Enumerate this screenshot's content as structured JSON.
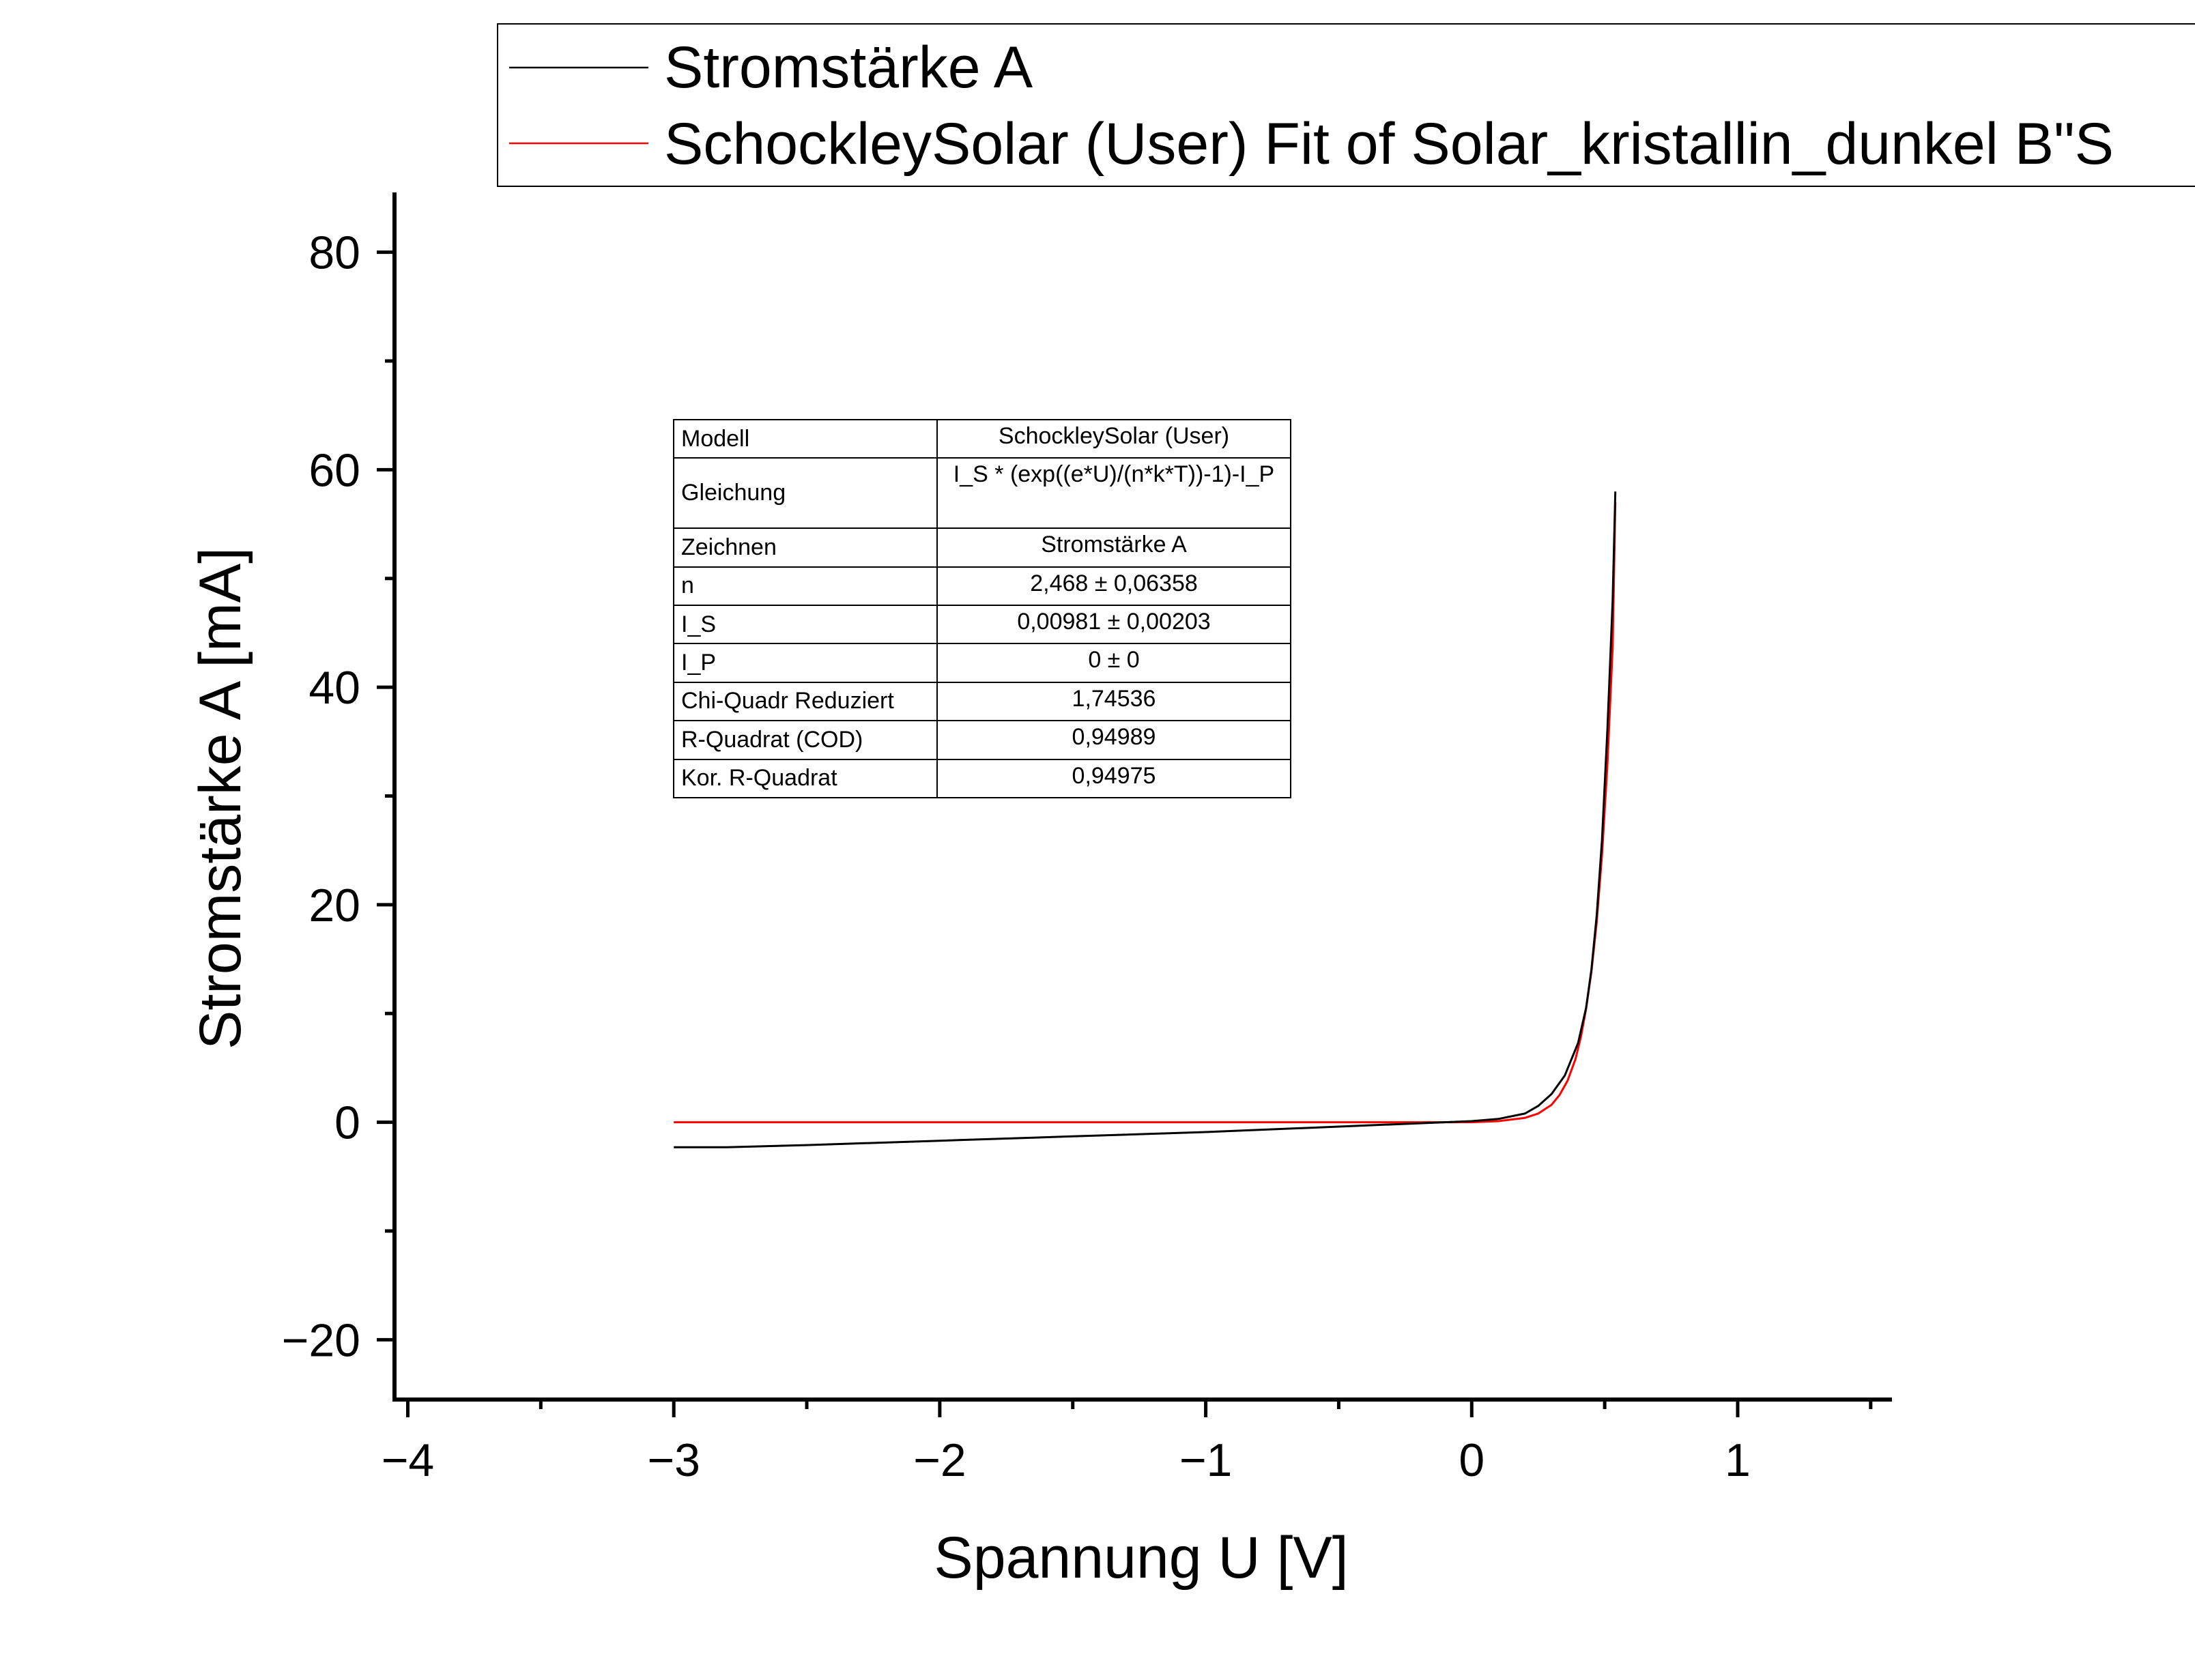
{
  "chart_data": {
    "type": "line",
    "xlabel": "Spannung U [V]",
    "ylabel": "Stromstärke A [mA]",
    "xlim": [
      -4.05,
      1.58
    ],
    "ylim": [
      -25.5,
      85.5
    ],
    "xticks": [
      -4,
      -3,
      -2,
      -1,
      0,
      1
    ],
    "xtick_labels": [
      "−4",
      "−3",
      "−2",
      "−1",
      "0",
      "1"
    ],
    "yticks": [
      -20,
      0,
      20,
      40,
      60,
      80
    ],
    "ytick_labels": [
      "−20",
      "0",
      "20",
      "40",
      "60",
      "80"
    ],
    "grid": false,
    "legend_position": "top",
    "series": [
      {
        "name": "Stromstärke A",
        "color": "#000000",
        "x": [
          -3.0,
          -2.8,
          -2.5,
          -2.0,
          -1.5,
          -1.0,
          -0.5,
          0.0,
          0.1,
          0.2,
          0.25,
          0.3,
          0.35,
          0.4,
          0.43,
          0.45,
          0.47,
          0.49,
          0.51,
          0.53,
          0.54
        ],
        "y": [
          -2.3,
          -2.3,
          -2.1,
          -1.7,
          -1.3,
          -0.9,
          -0.4,
          0.1,
          0.3,
          0.8,
          1.5,
          2.6,
          4.3,
          7.3,
          10.5,
          14.0,
          19.0,
          26.0,
          36.0,
          48.0,
          58.0
        ]
      },
      {
        "name": "SchockleySolar (User) Fit of Solar_kristallin_dunkel B\"Stromstärke\"",
        "color": "#ff0000",
        "x": [
          -3.0,
          -2.0,
          -1.0,
          0.0,
          0.1,
          0.2,
          0.25,
          0.3,
          0.33,
          0.36,
          0.39,
          0.41,
          0.43,
          0.45,
          0.47,
          0.49,
          0.51,
          0.53,
          0.54
        ],
        "y": [
          0.0,
          0.0,
          0.0,
          0.0,
          0.1,
          0.4,
          0.8,
          1.6,
          2.5,
          3.8,
          5.8,
          7.8,
          10.4,
          13.8,
          18.4,
          24.6,
          32.8,
          43.7,
          57.0
        ]
      }
    ],
    "legend": [
      "Stromstärke A",
      "SchockleySolar (User) Fit of Solar_kristallin_dunkel B\"S"
    ],
    "table": {
      "rows": [
        {
          "label": "Modell",
          "value": "SchockleySolar (User)"
        },
        {
          "label": "Gleichung",
          "value": "I_S * (exp((e*U)/(n*k*T))-1)-I_P"
        },
        {
          "label": "Zeichnen",
          "value": "Stromstärke A"
        },
        {
          "label": "n",
          "value": "2,468 ± 0,06358"
        },
        {
          "label": "I_S",
          "value": "0,00981 ± 0,00203"
        },
        {
          "label": "I_P",
          "value": "0 ± 0"
        },
        {
          "label": "Chi-Quadr Reduziert",
          "value": "1,74536"
        },
        {
          "label": "R-Quadrat (COD)",
          "value": "0,94989"
        },
        {
          "label": "Kor. R-Quadrat",
          "value": "0,94975"
        }
      ]
    }
  }
}
